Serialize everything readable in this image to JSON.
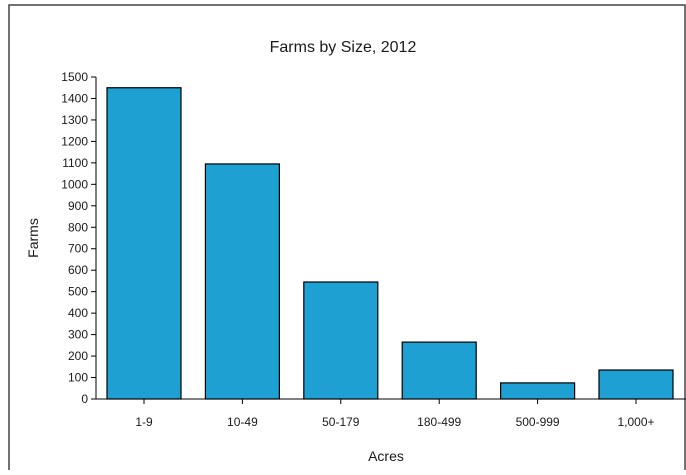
{
  "chart_data": {
    "type": "bar",
    "title": "Farms by Size, 2012",
    "xlabel": "Acres",
    "ylabel": "Farms",
    "categories": [
      "1-9",
      "10-49",
      "50-179",
      "180-499",
      "500-999",
      "1,000+"
    ],
    "values": [
      1450,
      1095,
      545,
      265,
      75,
      135
    ],
    "ylim": [
      0,
      1500
    ],
    "yticks": [
      0,
      100,
      200,
      300,
      400,
      500,
      600,
      700,
      800,
      900,
      1000,
      1100,
      1200,
      1300,
      1400,
      1500
    ],
    "grid": false,
    "legend": "none",
    "bar_color": "#1fa0d2",
    "bar_edge_color": "#000000"
  }
}
